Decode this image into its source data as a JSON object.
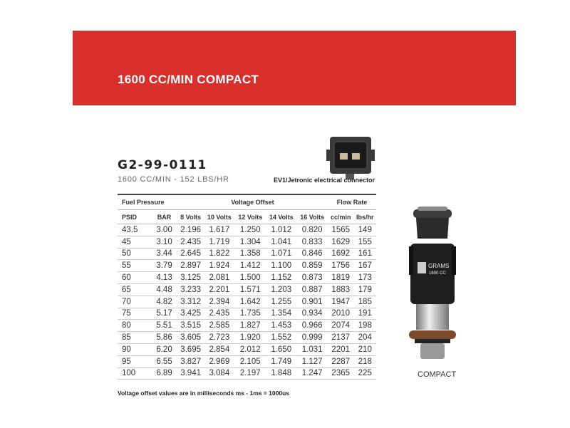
{
  "banner": {
    "title": "1600 CC/MIN COMPACT",
    "color": "#d9302c"
  },
  "product": {
    "part_number": "G2-99-0111",
    "subtitle": "1600 CC/MIN - 152 LBS/HR",
    "connector_label": "EV1/Jetronic electrical connector",
    "injector_label": "COMPACT",
    "injector_brand": "GRAMS",
    "injector_model": "1600 CC"
  },
  "table": {
    "groups": [
      "Fuel Pressure",
      "Voltage Offset",
      "Flow Rate"
    ],
    "columns": [
      "PSID",
      "BAR",
      "8 Volts",
      "10 Volts",
      "12 Volts",
      "14 Volts",
      "16 Volts",
      "cc/min",
      "lbs/hr"
    ],
    "rows": [
      [
        "43.5",
        "3.00",
        "2.196",
        "1.617",
        "1.250",
        "1.012",
        "0.820",
        "1565",
        "149"
      ],
      [
        "45",
        "3.10",
        "2.435",
        "1.719",
        "1.304",
        "1.041",
        "0.833",
        "1629",
        "155"
      ],
      [
        "50",
        "3.44",
        "2.645",
        "1.822",
        "1.358",
        "1.071",
        "0.846",
        "1692",
        "161"
      ],
      [
        "55",
        "3.79",
        "2.897",
        "1.924",
        "1.412",
        "1.100",
        "0.859",
        "1756",
        "167"
      ],
      [
        "60",
        "4.13",
        "3.125",
        "2.081",
        "1.500",
        "1.152",
        "0.873",
        "1819",
        "173"
      ],
      [
        "65",
        "4.48",
        "3.233",
        "2.201",
        "1.571",
        "1.203",
        "0.887",
        "1883",
        "179"
      ],
      [
        "70",
        "4.82",
        "3.312",
        "2.394",
        "1.642",
        "1.255",
        "0.901",
        "1947",
        "185"
      ],
      [
        "75",
        "5.17",
        "3.425",
        "2.435",
        "1.735",
        "1.354",
        "0.934",
        "2010",
        "191"
      ],
      [
        "80",
        "5.51",
        "3.515",
        "2.585",
        "1.827",
        "1.453",
        "0.966",
        "2074",
        "198"
      ],
      [
        "85",
        "5.86",
        "3.605",
        "2.723",
        "1.920",
        "1.552",
        "0.999",
        "2137",
        "204"
      ],
      [
        "90",
        "6.20",
        "3.695",
        "2.854",
        "2.012",
        "1.650",
        "1.031",
        "2201",
        "210"
      ],
      [
        "95",
        "6.55",
        "3.827",
        "2.969",
        "2.105",
        "1.749",
        "1.127",
        "2287",
        "218"
      ],
      [
        "100",
        "6.89",
        "3.941",
        "3.084",
        "2.197",
        "1.848",
        "1.247",
        "2365",
        "225"
      ]
    ]
  },
  "note": "Voltage offset values are in milliseconds ms - 1ms = 1000us"
}
